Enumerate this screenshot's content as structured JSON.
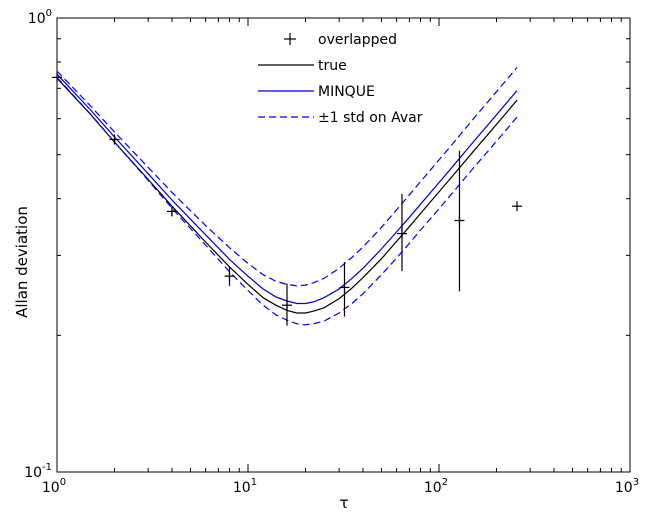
{
  "chart_data": {
    "type": "line",
    "xscale": "log",
    "yscale": "log",
    "xlim": [
      1,
      1000
    ],
    "ylim": [
      0.1,
      1
    ],
    "xlabel": "τ",
    "ylabel": "Allan deviation",
    "x_ticks": [
      {
        "base": "10",
        "exp": "0",
        "value": 1
      },
      {
        "base": "10",
        "exp": "1",
        "value": 10
      },
      {
        "base": "10",
        "exp": "2",
        "value": 100
      },
      {
        "base": "10",
        "exp": "3",
        "value": 1000
      }
    ],
    "y_ticks": [
      {
        "base": "10",
        "exp": "-1",
        "value": 0.1
      },
      {
        "base": "10",
        "exp": "0",
        "value": 1
      }
    ],
    "grid": false,
    "legend_position": "top-center",
    "legend": [
      {
        "label": "overlapped",
        "style": "plus",
        "color": "#000000"
      },
      {
        "label": "true",
        "style": "solid",
        "color": "#000000"
      },
      {
        "label": "MINQUE",
        "style": "solid",
        "color": "#0000cc"
      },
      {
        "label": "±1 std on Avar",
        "style": "dashed",
        "color": "#0000ff"
      }
    ],
    "series": [
      {
        "name": "true",
        "color": "#000000",
        "style": "solid",
        "x": [
          1,
          1.5,
          2,
          3,
          4,
          6,
          8,
          10,
          12,
          14,
          16,
          18,
          20,
          22,
          25,
          30,
          35,
          40,
          50,
          60,
          70,
          80,
          100,
          120,
          150,
          200,
          256
        ],
        "y": [
          0.737,
          0.613,
          0.533,
          0.441,
          0.385,
          0.321,
          0.283,
          0.259,
          0.242,
          0.233,
          0.227,
          0.224,
          0.224,
          0.226,
          0.23,
          0.241,
          0.254,
          0.268,
          0.295,
          0.322,
          0.347,
          0.371,
          0.414,
          0.453,
          0.506,
          0.583,
          0.659
        ]
      },
      {
        "name": "MINQUE",
        "color": "#0000cc",
        "style": "solid",
        "x": [
          1,
          1.5,
          2,
          3,
          4,
          6,
          8,
          10,
          12,
          14,
          16,
          18,
          20,
          22,
          25,
          30,
          35,
          40,
          50,
          60,
          70,
          80,
          100,
          120,
          150,
          200,
          256
        ],
        "y": [
          0.752,
          0.627,
          0.547,
          0.454,
          0.397,
          0.333,
          0.294,
          0.27,
          0.253,
          0.243,
          0.238,
          0.235,
          0.235,
          0.237,
          0.242,
          0.253,
          0.267,
          0.281,
          0.31,
          0.338,
          0.364,
          0.389,
          0.434,
          0.475,
          0.531,
          0.612,
          0.692
        ]
      },
      {
        "name": "±1 std on Avar (upper)",
        "color": "#0000ff",
        "style": "dashed",
        "x": [
          1,
          1.5,
          2,
          3,
          4,
          6,
          8,
          10,
          12,
          14,
          16,
          18,
          20,
          22,
          25,
          30,
          35,
          40,
          50,
          60,
          70,
          80,
          100,
          120,
          150,
          200,
          256
        ],
        "y": [
          0.764,
          0.64,
          0.561,
          0.469,
          0.413,
          0.349,
          0.312,
          0.288,
          0.272,
          0.263,
          0.259,
          0.257,
          0.258,
          0.261,
          0.267,
          0.281,
          0.297,
          0.313,
          0.346,
          0.378,
          0.408,
          0.436,
          0.487,
          0.533,
          0.597,
          0.688,
          0.778
        ]
      },
      {
        "name": "±1 std on Avar (lower)",
        "color": "#0000ff",
        "style": "dashed",
        "x": [
          1,
          1.5,
          2,
          3,
          4,
          6,
          8,
          10,
          12,
          14,
          16,
          18,
          20,
          22,
          25,
          30,
          35,
          40,
          50,
          60,
          70,
          80,
          100,
          120,
          150,
          200,
          256
        ],
        "y": [
          0.74,
          0.614,
          0.533,
          0.439,
          0.381,
          0.316,
          0.276,
          0.251,
          0.233,
          0.222,
          0.216,
          0.212,
          0.211,
          0.212,
          0.215,
          0.224,
          0.235,
          0.247,
          0.272,
          0.296,
          0.319,
          0.341,
          0.38,
          0.416,
          0.465,
          0.535,
          0.605
        ]
      }
    ],
    "markers": {
      "name": "overlapped",
      "style": "plus",
      "color": "#000000",
      "points": [
        {
          "x": 1,
          "y": 0.74
        },
        {
          "x": 2,
          "y": 0.54
        },
        {
          "x": 4,
          "y": 0.375
        },
        {
          "x": 8,
          "y": 0.27
        },
        {
          "x": 16,
          "y": 0.233
        },
        {
          "x": 32,
          "y": 0.255
        },
        {
          "x": 64,
          "y": 0.335
        },
        {
          "x": 128,
          "y": 0.358
        },
        {
          "x": 256,
          "y": 0.385
        }
      ]
    },
    "error_bars": [
      {
        "x": 2,
        "low": 0.53,
        "high": 0.55
      },
      {
        "x": 4,
        "low": 0.366,
        "high": 0.384
      },
      {
        "x": 8,
        "low": 0.257,
        "high": 0.283
      },
      {
        "x": 16,
        "low": 0.21,
        "high": 0.26
      },
      {
        "x": 32,
        "low": 0.22,
        "high": 0.29
      },
      {
        "x": 64,
        "low": 0.277,
        "high": 0.41
      },
      {
        "x": 128,
        "low": 0.25,
        "high": 0.51
      }
    ]
  }
}
